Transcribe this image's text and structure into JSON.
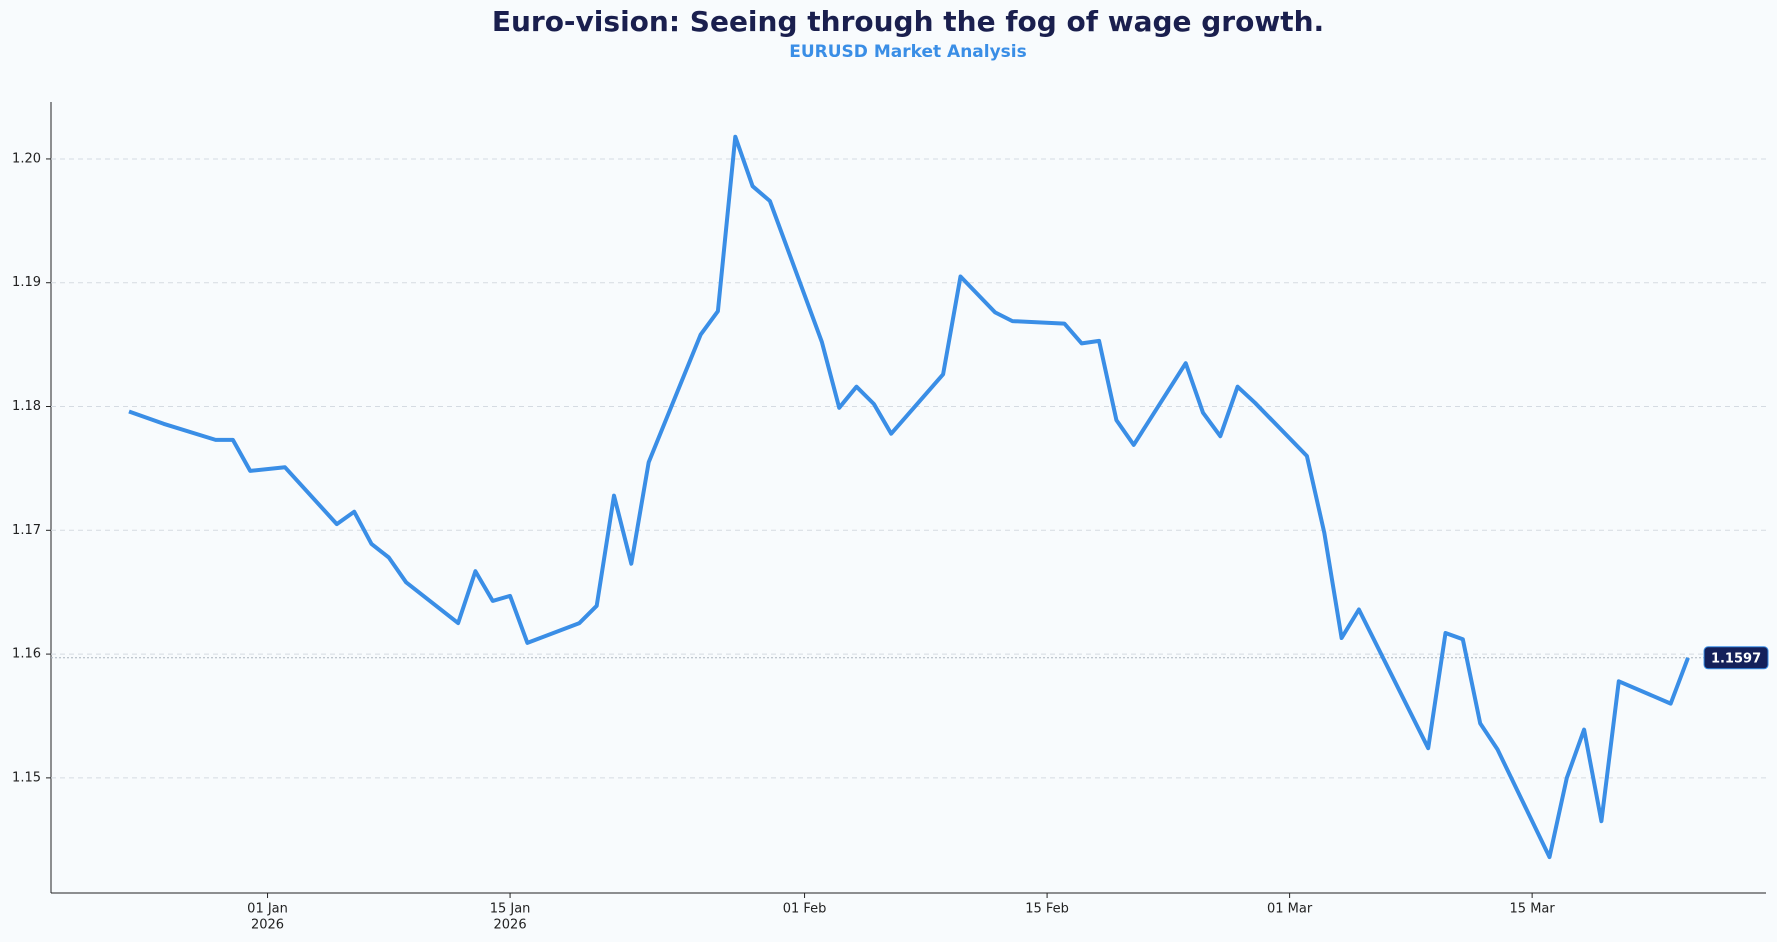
{
  "chart_data": {
    "type": "line",
    "title": "Euro-vision: Seeing through the fog of wage growth.",
    "subtitle": "EURUSD Market Analysis",
    "x": [
      "2025-12-24",
      "2025-12-26",
      "2025-12-29",
      "2025-12-30",
      "2025-12-31",
      "2026-01-02",
      "2026-01-05",
      "2026-01-06",
      "2026-01-07",
      "2026-01-08",
      "2026-01-09",
      "2026-01-12",
      "2026-01-13",
      "2026-01-14",
      "2026-01-15",
      "2026-01-16",
      "2026-01-19",
      "2026-01-20",
      "2026-01-21",
      "2026-01-22",
      "2026-01-23",
      "2026-01-26",
      "2026-01-27",
      "2026-01-28",
      "2026-01-29",
      "2026-01-30",
      "2026-02-02",
      "2026-02-03",
      "2026-02-04",
      "2026-02-05",
      "2026-02-06",
      "2026-02-09",
      "2026-02-10",
      "2026-02-12",
      "2026-02-13",
      "2026-02-16",
      "2026-02-17",
      "2026-02-18",
      "2026-02-19",
      "2026-02-20",
      "2026-02-23",
      "2026-02-24",
      "2026-02-25",
      "2026-02-26",
      "2026-02-27",
      "2026-03-02",
      "2026-03-03",
      "2026-03-04",
      "2026-03-05",
      "2026-03-09",
      "2026-03-10",
      "2026-03-11",
      "2026-03-12",
      "2026-03-13",
      "2026-03-16",
      "2026-03-17",
      "2026-03-18",
      "2026-03-19",
      "2026-03-20",
      "2026-03-23",
      "2026-03-24"
    ],
    "series": [
      {
        "name": "EURUSD",
        "color": "#3a8ee6",
        "values": [
          1.1796,
          1.1786,
          1.1773,
          1.1773,
          1.1748,
          1.1751,
          1.1705,
          1.1715,
          1.1689,
          1.1678,
          1.1658,
          1.1625,
          1.1667,
          1.1643,
          1.1647,
          1.1609,
          1.1625,
          1.1639,
          1.1728,
          1.1673,
          1.1755,
          1.1858,
          1.1877,
          1.2018,
          1.1978,
          1.1966,
          1.1852,
          1.1799,
          1.1816,
          1.1802,
          1.1778,
          1.1826,
          1.1905,
          1.1876,
          1.1869,
          1.1867,
          1.1851,
          1.1853,
          1.1789,
          1.1769,
          1.1835,
          1.1795,
          1.1776,
          1.1816,
          1.1803,
          1.176,
          1.1698,
          1.1613,
          1.1636,
          1.1524,
          1.1617,
          1.1612,
          1.1544,
          1.1523,
          1.1436,
          1.15,
          1.1539,
          1.1465,
          1.1578,
          1.156,
          1.1597
        ]
      }
    ],
    "xlim": [
      "2025-12-19T12:00",
      "2026-03-28T12:00"
    ],
    "xticks": [
      {
        "value": "2026-01-01",
        "label": "01 Jan",
        "year": "2026"
      },
      {
        "value": "2026-01-15",
        "label": "15 Jan",
        "year": "2026"
      },
      {
        "value": "2026-02-01",
        "label": "01 Feb"
      },
      {
        "value": "2026-02-15",
        "label": "15 Feb"
      },
      {
        "value": "2026-03-01",
        "label": "01 Mar"
      },
      {
        "value": "2026-03-15",
        "label": "15 Mar"
      }
    ],
    "ylim": [
      1.1407,
      1.2046
    ],
    "yticks": [
      1.15,
      1.16,
      1.17,
      1.18,
      1.19,
      {
        "value": 1.2,
        "label": "1.20"
      }
    ],
    "grid": true,
    "badge_color": "#14205a"
  }
}
